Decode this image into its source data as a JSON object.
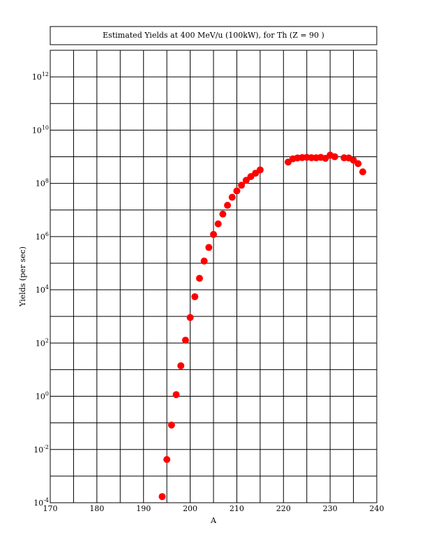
{
  "chart_data": {
    "type": "scatter",
    "title": "Estimated Yields at 400 MeV/u (100kW), for Th (Z = 90 )",
    "xlabel": "A",
    "ylabel": "Yields (per sec)",
    "xlim": [
      170,
      240
    ],
    "ylim_log10": [
      -4,
      13
    ],
    "y_scale": "log",
    "grid": true,
    "marker_color": "#ff0000",
    "x_ticks": [
      "170",
      "180",
      "190",
      "200",
      "210",
      "220",
      "230",
      "240"
    ],
    "y_ticks": [
      {
        "base": "10",
        "exp": "-4",
        "log": -4
      },
      {
        "base": "10",
        "exp": "-2",
        "log": -2
      },
      {
        "base": "10",
        "exp": "0",
        "log": 0
      },
      {
        "base": "10",
        "exp": "2",
        "log": 2
      },
      {
        "base": "10",
        "exp": "4",
        "log": 4
      },
      {
        "base": "10",
        "exp": "6",
        "log": 6
      },
      {
        "base": "10",
        "exp": "8",
        "log": 8
      },
      {
        "base": "10",
        "exp": "10",
        "log": 10
      },
      {
        "base": "10",
        "exp": "12",
        "log": 12
      }
    ],
    "points": [
      {
        "x": 194,
        "y": 0.00017
      },
      {
        "x": 195,
        "y": 0.0042
      },
      {
        "x": 196,
        "y": 0.083
      },
      {
        "x": 197,
        "y": 1.15
      },
      {
        "x": 198,
        "y": 14
      },
      {
        "x": 199,
        "y": 128
      },
      {
        "x": 200,
        "y": 910
      },
      {
        "x": 201,
        "y": 5500
      },
      {
        "x": 202,
        "y": 27000
      },
      {
        "x": 203,
        "y": 120000
      },
      {
        "x": 204,
        "y": 390000
      },
      {
        "x": 205,
        "y": 1200000
      },
      {
        "x": 206,
        "y": 3000000
      },
      {
        "x": 207,
        "y": 7000000
      },
      {
        "x": 208,
        "y": 15000000
      },
      {
        "x": 209,
        "y": 30000000
      },
      {
        "x": 210,
        "y": 52000000
      },
      {
        "x": 211,
        "y": 85000000
      },
      {
        "x": 212,
        "y": 130000000
      },
      {
        "x": 213,
        "y": 180000000
      },
      {
        "x": 214,
        "y": 240000000
      },
      {
        "x": 215,
        "y": 320000000
      },
      {
        "x": 221,
        "y": 630000000
      },
      {
        "x": 222,
        "y": 830000000
      },
      {
        "x": 223,
        "y": 900000000
      },
      {
        "x": 224,
        "y": 930000000
      },
      {
        "x": 225,
        "y": 950000000
      },
      {
        "x": 226,
        "y": 920000000
      },
      {
        "x": 227,
        "y": 910000000
      },
      {
        "x": 228,
        "y": 950000000
      },
      {
        "x": 229,
        "y": 870000000
      },
      {
        "x": 230,
        "y": 1150000000
      },
      {
        "x": 231,
        "y": 1000000000
      },
      {
        "x": 233,
        "y": 910000000
      },
      {
        "x": 234,
        "y": 900000000
      },
      {
        "x": 235,
        "y": 740000000
      },
      {
        "x": 236,
        "y": 550000000
      },
      {
        "x": 237,
        "y": 270000000
      }
    ]
  }
}
